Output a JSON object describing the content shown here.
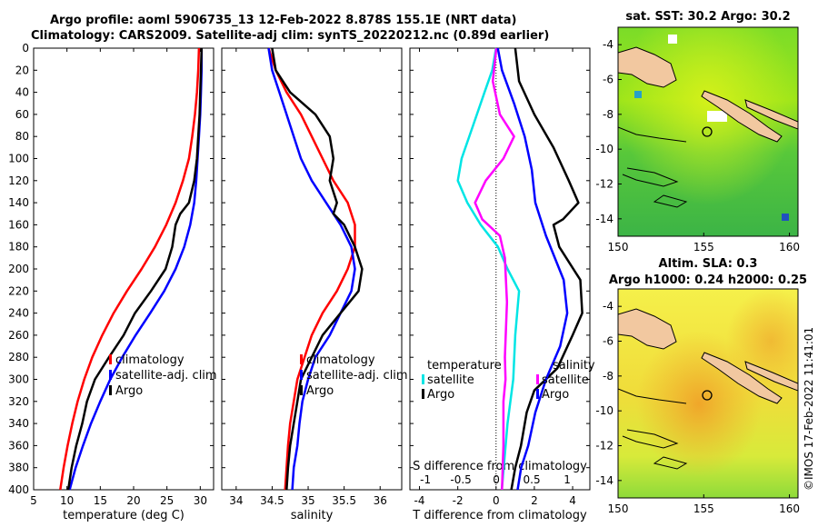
{
  "header": {
    "title_line1": "Argo profile: aoml 5906735_13 12-Feb-2022 8.878S 155.1E (NRT data)",
    "title_line2": "Climatology: CARS2009. Satellite-adj clim: synTS_20220212.nc (0.89d earlier)",
    "sst_title": "sat. SST: 30.2 Argo: 30.2",
    "sla_title1": "Altim. SLA: 0.3",
    "sla_title2": "Argo h1000: 0.24 h2000: 0.25",
    "watermark": "©IMOS 17-Feb-2022 11:41:01"
  },
  "colors": {
    "climatology": "#ff0000",
    "satellite": "#0000ff",
    "argo": "#000000",
    "t_diff_sat": "#00e5e5",
    "s_diff_sat": "#ff00ff",
    "coast_fill": "#f2c8a0"
  },
  "chart_data": [
    {
      "type": "line",
      "name": "temperature",
      "xlabel": "temperature (deg C)",
      "ylabel": "",
      "xlim": [
        5,
        32
      ],
      "ylim": [
        400,
        0
      ],
      "xticks": [
        5,
        10,
        15,
        20,
        25,
        30
      ],
      "yticks": [
        0,
        20,
        40,
        60,
        80,
        100,
        120,
        140,
        160,
        180,
        200,
        220,
        240,
        260,
        280,
        300,
        320,
        340,
        360,
        380,
        400
      ],
      "legend": [
        "climatology",
        "satellite-adj. clim",
        "Argo"
      ],
      "series": [
        {
          "name": "climatology",
          "color": "#ff0000",
          "points": [
            [
              29.8,
              0
            ],
            [
              29.7,
              20
            ],
            [
              29.5,
              40
            ],
            [
              29.2,
              60
            ],
            [
              28.8,
              80
            ],
            [
              28.3,
              100
            ],
            [
              27.4,
              120
            ],
            [
              26.3,
              140
            ],
            [
              24.9,
              160
            ],
            [
              23.2,
              180
            ],
            [
              21.2,
              200
            ],
            [
              19.0,
              220
            ],
            [
              17.0,
              240
            ],
            [
              15.3,
              260
            ],
            [
              13.8,
              280
            ],
            [
              12.6,
              300
            ],
            [
              11.6,
              320
            ],
            [
              10.8,
              340
            ],
            [
              10.1,
              360
            ],
            [
              9.5,
              380
            ],
            [
              9.0,
              400
            ]
          ]
        },
        {
          "name": "satellite-adj. clim",
          "color": "#0000ff",
          "points": [
            [
              30.2,
              0
            ],
            [
              30.2,
              20
            ],
            [
              30.1,
              40
            ],
            [
              30.0,
              60
            ],
            [
              29.8,
              80
            ],
            [
              29.6,
              100
            ],
            [
              29.4,
              120
            ],
            [
              29.1,
              140
            ],
            [
              28.5,
              160
            ],
            [
              27.6,
              180
            ],
            [
              26.3,
              200
            ],
            [
              24.6,
              220
            ],
            [
              22.5,
              240
            ],
            [
              20.3,
              260
            ],
            [
              18.3,
              280
            ],
            [
              16.5,
              300
            ],
            [
              15.0,
              320
            ],
            [
              13.6,
              340
            ],
            [
              12.4,
              360
            ],
            [
              11.3,
              380
            ],
            [
              10.4,
              400
            ]
          ]
        },
        {
          "name": "Argo",
          "color": "#000000",
          "points": [
            [
              30.2,
              0
            ],
            [
              30.1,
              20
            ],
            [
              30.0,
              40
            ],
            [
              29.9,
              60
            ],
            [
              29.7,
              80
            ],
            [
              29.5,
              100
            ],
            [
              29.1,
              120
            ],
            [
              28.3,
              140
            ],
            [
              27.0,
              150
            ],
            [
              26.3,
              160
            ],
            [
              25.8,
              180
            ],
            [
              24.8,
              200
            ],
            [
              22.6,
              220
            ],
            [
              20.2,
              240
            ],
            [
              18.5,
              260
            ],
            [
              16.3,
              280
            ],
            [
              14.2,
              300
            ],
            [
              13.0,
              320
            ],
            [
              12.3,
              340
            ],
            [
              11.4,
              360
            ],
            [
              10.7,
              380
            ],
            [
              10.2,
              400
            ]
          ]
        }
      ]
    },
    {
      "type": "line",
      "name": "salinity",
      "xlabel": "salinity",
      "xlim": [
        33.8,
        36.3
      ],
      "ylim": [
        400,
        0
      ],
      "xticks": [
        34,
        34.5,
        35,
        35.5,
        36
      ],
      "legend": [
        "climatology",
        "satellite-adj. clim",
        "Argo"
      ],
      "series": [
        {
          "name": "climatology",
          "color": "#ff0000",
          "points": [
            [
              34.45,
              0
            ],
            [
              34.55,
              20
            ],
            [
              34.7,
              40
            ],
            [
              34.9,
              60
            ],
            [
              35.05,
              80
            ],
            [
              35.2,
              100
            ],
            [
              35.35,
              120
            ],
            [
              35.55,
              140
            ],
            [
              35.65,
              160
            ],
            [
              35.65,
              180
            ],
            [
              35.55,
              200
            ],
            [
              35.4,
              220
            ],
            [
              35.2,
              240
            ],
            [
              35.05,
              260
            ],
            [
              34.95,
              280
            ],
            [
              34.85,
              300
            ],
            [
              34.8,
              320
            ],
            [
              34.75,
              340
            ],
            [
              34.72,
              360
            ],
            [
              34.7,
              380
            ],
            [
              34.68,
              400
            ]
          ]
        },
        {
          "name": "satellite-adj. clim",
          "color": "#0000ff",
          "points": [
            [
              34.45,
              0
            ],
            [
              34.5,
              20
            ],
            [
              34.6,
              40
            ],
            [
              34.7,
              60
            ],
            [
              34.8,
              80
            ],
            [
              34.9,
              100
            ],
            [
              35.05,
              120
            ],
            [
              35.25,
              140
            ],
            [
              35.45,
              160
            ],
            [
              35.6,
              180
            ],
            [
              35.65,
              200
            ],
            [
              35.6,
              220
            ],
            [
              35.45,
              240
            ],
            [
              35.3,
              260
            ],
            [
              35.1,
              280
            ],
            [
              35.0,
              300
            ],
            [
              34.92,
              320
            ],
            [
              34.88,
              340
            ],
            [
              34.85,
              360
            ],
            [
              34.8,
              380
            ],
            [
              34.78,
              400
            ]
          ]
        },
        {
          "name": "Argo",
          "color": "#000000",
          "points": [
            [
              34.5,
              0
            ],
            [
              34.55,
              20
            ],
            [
              34.75,
              40
            ],
            [
              35.1,
              60
            ],
            [
              35.3,
              80
            ],
            [
              35.35,
              100
            ],
            [
              35.3,
              120
            ],
            [
              35.4,
              140
            ],
            [
              35.35,
              150
            ],
            [
              35.5,
              160
            ],
            [
              35.65,
              180
            ],
            [
              35.75,
              200
            ],
            [
              35.7,
              220
            ],
            [
              35.45,
              240
            ],
            [
              35.2,
              260
            ],
            [
              35.05,
              280
            ],
            [
              34.9,
              300
            ],
            [
              34.85,
              320
            ],
            [
              34.8,
              340
            ],
            [
              34.75,
              360
            ],
            [
              34.72,
              380
            ],
            [
              34.7,
              400
            ]
          ]
        }
      ]
    },
    {
      "type": "line",
      "name": "difference from climatology",
      "xlabel": "T difference from climatology",
      "x2label": "S difference from climatology",
      "xlim": [
        -4.5,
        4.9
      ],
      "x2lim": [
        -1.22,
        1.32
      ],
      "ylim": [
        400,
        0
      ],
      "xticks": [
        -4,
        -2,
        0,
        2,
        4
      ],
      "x2ticks": [
        -1,
        -0.5,
        0,
        0.5,
        1
      ],
      "legend_left_title": "temperature",
      "legend_right_title": "salinity",
      "legend": [
        "satellite",
        "Argo"
      ],
      "series": [
        {
          "name": "temperature satellite",
          "color": "#00e5e5",
          "points": [
            [
              0,
              0
            ],
            [
              -0.2,
              20
            ],
            [
              -0.6,
              40
            ],
            [
              -1.2,
              70
            ],
            [
              -1.8,
              100
            ],
            [
              -2.0,
              120
            ],
            [
              -1.5,
              140
            ],
            [
              -0.8,
              160
            ],
            [
              0.1,
              180
            ],
            [
              0.6,
              200
            ],
            [
              1.2,
              220
            ],
            [
              1.0,
              260
            ],
            [
              0.9,
              300
            ],
            [
              0.6,
              340
            ],
            [
              0.4,
              380
            ],
            [
              0.3,
              400
            ]
          ]
        },
        {
          "name": "temperature Argo",
          "color": "#000000",
          "points": [
            [
              1.0,
              0
            ],
            [
              1.2,
              30
            ],
            [
              2.0,
              60
            ],
            [
              3.0,
              90
            ],
            [
              3.8,
              120
            ],
            [
              4.3,
              140
            ],
            [
              3.5,
              155
            ],
            [
              3.0,
              160
            ],
            [
              3.3,
              180
            ],
            [
              4.4,
              210
            ],
            [
              4.5,
              240
            ],
            [
              4.0,
              260
            ],
            [
              3.2,
              290
            ],
            [
              2.0,
              310
            ],
            [
              1.6,
              330
            ],
            [
              1.3,
              360
            ],
            [
              1.0,
              380
            ],
            [
              0.8,
              400
            ]
          ]
        },
        {
          "name": "salinity satellite",
          "color": "#ff00ff",
          "points": [
            [
              0,
              0
            ],
            [
              -0.05,
              30
            ],
            [
              0.05,
              60
            ],
            [
              0.25,
              80
            ],
            [
              0.1,
              100
            ],
            [
              -0.15,
              120
            ],
            [
              -0.3,
              140
            ],
            [
              -0.2,
              155
            ],
            [
              0.05,
              170
            ],
            [
              0.12,
              190
            ],
            [
              0.15,
              230
            ],
            [
              0.12,
              280
            ],
            [
              0.13,
              300
            ],
            [
              0.1,
              320
            ],
            [
              0.1,
              360
            ],
            [
              0.08,
              400
            ]
          ]
        },
        {
          "name": "salinity Argo",
          "color": "#0000ff",
          "points": [
            [
              0.02,
              0
            ],
            [
              0.08,
              20
            ],
            [
              0.25,
              50
            ],
            [
              0.4,
              80
            ],
            [
              0.5,
              110
            ],
            [
              0.55,
              140
            ],
            [
              0.7,
              170
            ],
            [
              0.95,
              210
            ],
            [
              1.0,
              240
            ],
            [
              0.9,
              270
            ],
            [
              0.7,
              300
            ],
            [
              0.55,
              330
            ],
            [
              0.45,
              360
            ],
            [
              0.35,
              380
            ],
            [
              0.3,
              400
            ]
          ]
        }
      ]
    },
    {
      "type": "heatmap",
      "name": "sat. SST map",
      "xlim": [
        150,
        160.5
      ],
      "ylim": [
        -15,
        -3
      ],
      "xticks": [
        150,
        155,
        160
      ],
      "yticks": [
        -4,
        -6,
        -8,
        -10,
        -12,
        -14
      ],
      "marker": [
        155.1,
        -8.878
      ]
    },
    {
      "type": "heatmap",
      "name": "Altim. SLA map",
      "xlim": [
        150,
        160.5
      ],
      "ylim": [
        -15,
        -3
      ],
      "xticks": [
        150,
        155,
        160
      ],
      "yticks": [
        -4,
        -6,
        -8,
        -10,
        -12,
        -14
      ],
      "marker": [
        155.1,
        -8.878
      ]
    }
  ]
}
